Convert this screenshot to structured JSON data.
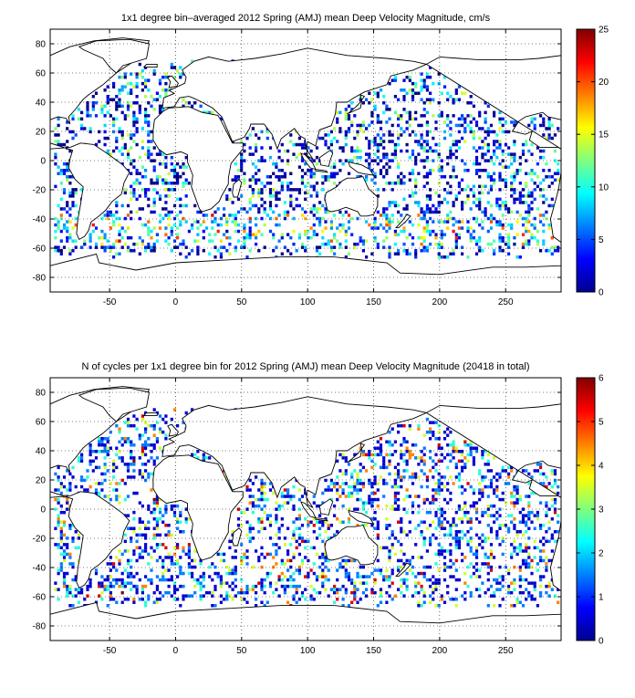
{
  "panels": [
    {
      "title": "1x1 degree bin–averaged 2012 Spring (AMJ) mean Deep Velocity Magnitude, cm/s",
      "colorbar_ticks": [
        "0",
        "5",
        "10",
        "15",
        "20",
        "25"
      ]
    },
    {
      "title": "N of cycles per 1x1 degree bin for 2012 Spring (AMJ) mean Deep Velocity Magnitude (20418 in total)",
      "colorbar_ticks": [
        "0",
        "1",
        "2",
        "3",
        "4",
        "5",
        "6"
      ]
    }
  ],
  "chart_data": [
    {
      "type": "heatmap",
      "title": "1x1 degree bin–averaged 2012 Spring (AMJ) mean Deep Velocity Magnitude, cm/s",
      "xlim": [
        -95,
        292
      ],
      "ylim": [
        -90,
        90
      ],
      "xticks": [
        -50,
        0,
        50,
        100,
        150,
        200,
        250
      ],
      "yticks": [
        -80,
        -60,
        -40,
        -20,
        0,
        20,
        40,
        60,
        80
      ],
      "colorbar": {
        "min": 0,
        "max": 25,
        "ticks": [
          0,
          5,
          10,
          15,
          20,
          25
        ],
        "colormap": "jet"
      },
      "grid": true
    },
    {
      "type": "heatmap",
      "title": "N of cycles per 1x1 degree bin for 2012 Spring (AMJ) mean Deep Velocity Magnitude (20418 in total)",
      "total_cycles": 20418,
      "xlim": [
        -95,
        292
      ],
      "ylim": [
        -90,
        90
      ],
      "xticks": [
        -50,
        0,
        50,
        100,
        150,
        200,
        250
      ],
      "yticks": [
        -80,
        -60,
        -40,
        -20,
        0,
        20,
        40,
        60,
        80
      ],
      "colorbar": {
        "min": 0,
        "max": 6,
        "ticks": [
          0,
          1,
          2,
          3,
          4,
          5,
          6
        ],
        "colormap": "jet"
      },
      "grid": true
    }
  ]
}
